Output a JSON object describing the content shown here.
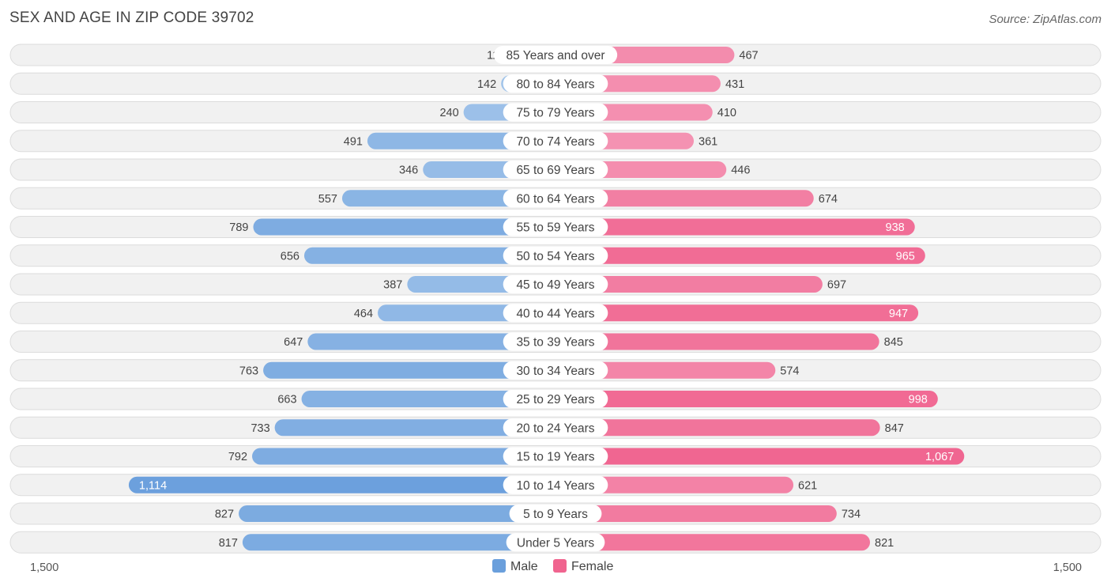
{
  "header": {
    "title": "SEX AND AGE IN ZIP CODE 39702",
    "source": "Source: ZipAtlas.com"
  },
  "colors": {
    "male_light": "#a9c9ec",
    "male_dark": "#6a9fdc",
    "female_light": "#f6a9c3",
    "female_dark": "#f0648f",
    "row_background": "#f1f1f1"
  },
  "chart_data": {
    "type": "bar",
    "orientation": "horizontal-diverging",
    "title": "SEX AND AGE IN ZIP CODE 39702",
    "categories": [
      "85 Years and over",
      "80 to 84 Years",
      "75 to 79 Years",
      "70 to 74 Years",
      "65 to 69 Years",
      "60 to 64 Years",
      "55 to 59 Years",
      "50 to 54 Years",
      "45 to 49 Years",
      "40 to 44 Years",
      "35 to 39 Years",
      "30 to 34 Years",
      "25 to 29 Years",
      "20 to 24 Years",
      "15 to 19 Years",
      "10 to 14 Years",
      "5 to 9 Years",
      "Under 5 Years"
    ],
    "series": [
      {
        "name": "Male",
        "side": "left",
        "values": [
          119,
          142,
          240,
          491,
          346,
          557,
          789,
          656,
          387,
          464,
          647,
          763,
          663,
          733,
          792,
          1114,
          827,
          817
        ],
        "labels": [
          "119",
          "142",
          "240",
          "491",
          "346",
          "557",
          "789",
          "656",
          "387",
          "464",
          "647",
          "763",
          "663",
          "733",
          "792",
          "1,114",
          "827",
          "817"
        ]
      },
      {
        "name": "Female",
        "side": "right",
        "values": [
          467,
          431,
          410,
          361,
          446,
          674,
          938,
          965,
          697,
          947,
          845,
          574,
          998,
          847,
          1067,
          621,
          734,
          821
        ],
        "labels": [
          "467",
          "431",
          "410",
          "361",
          "446",
          "674",
          "938",
          "965",
          "697",
          "947",
          "845",
          "574",
          "998",
          "847",
          "1,067",
          "621",
          "734",
          "821"
        ]
      }
    ],
    "xlim": [
      -1500,
      1500
    ],
    "axis_tick_labels": {
      "left": "1,500",
      "right": "1,500"
    },
    "legend": {
      "position": "bottom-center",
      "entries": [
        "Male",
        "Female"
      ]
    },
    "grid": false
  }
}
